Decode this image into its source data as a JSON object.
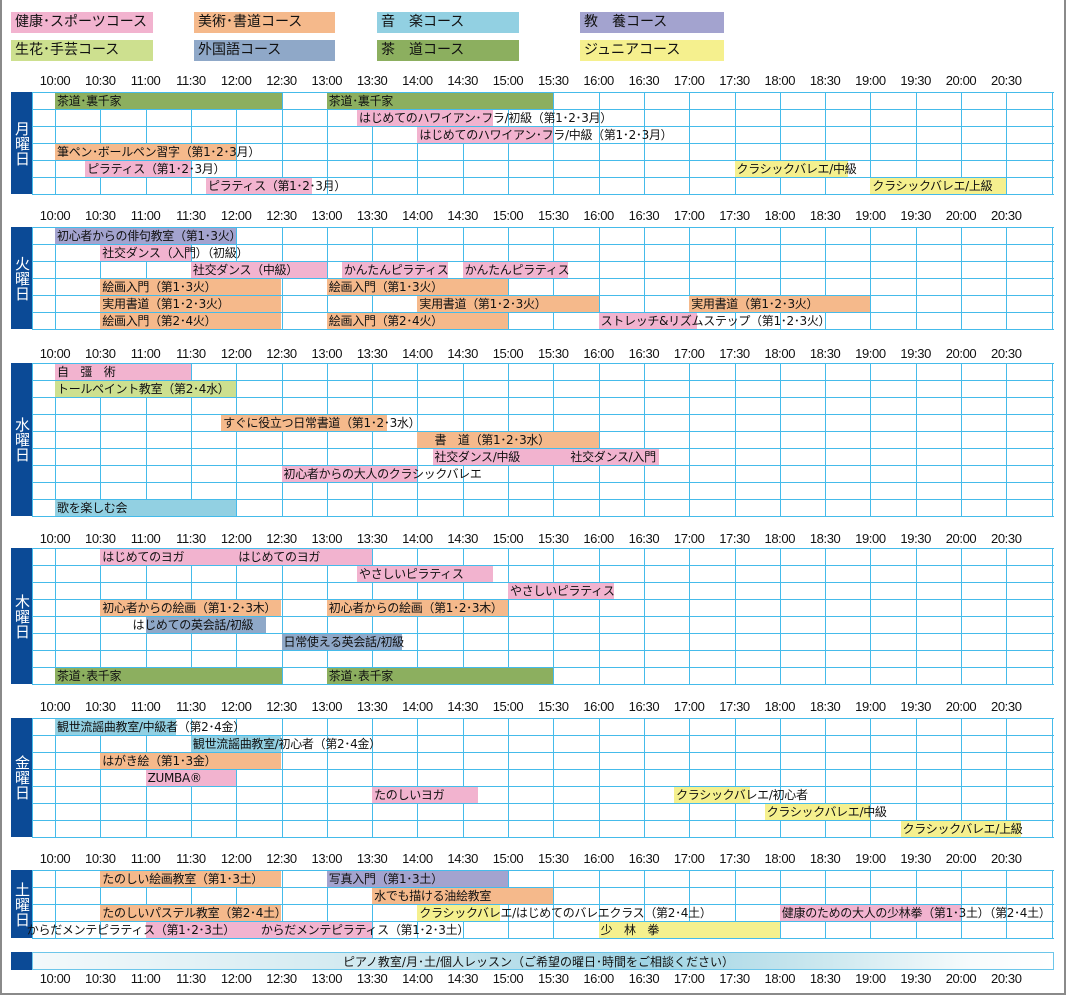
{
  "colors": {
    "health": "#f2b3cf",
    "art": "#f5b98b",
    "music": "#92d0e2",
    "edu": "#a3a3cf",
    "craft": "#cde08f",
    "foreign": "#8fa8c8",
    "tea": "#8caf5f",
    "junior": "#f5f08e",
    "day": "#0b4a96",
    "grid": "#45bbea"
  },
  "legend": [
    {
      "label": "健康･スポーツコース",
      "color": "health"
    },
    {
      "label": "美術･書道コース",
      "color": "art"
    },
    {
      "label": "音　楽コース",
      "color": "music"
    },
    {
      "label": "教　養コース",
      "color": "edu"
    },
    {
      "label": "生花･手芸コース",
      "color": "craft"
    },
    {
      "label": "外国語コース",
      "color": "foreign"
    },
    {
      "label": "茶　道コース",
      "color": "tea"
    },
    {
      "label": "ジュニアコース",
      "color": "junior"
    }
  ],
  "time_labels": [
    "10:00",
    "10:30",
    "11:00",
    "11:30",
    "12:00",
    "12:30",
    "13:00",
    "13:30",
    "14:00",
    "14:30",
    "15:00",
    "15:30",
    "16:00",
    "16:30",
    "17:00",
    "17:30",
    "18:00",
    "18:30",
    "19:00",
    "19:30",
    "20:00",
    "20:30"
  ],
  "days": [
    {
      "label": "月曜日",
      "rows": [
        [
          {
            "t": "茶道･裏千家",
            "s": "10:00",
            "e": "12:30",
            "c": "tea"
          },
          {
            "t": "茶道･裏千家",
            "s": "13:00",
            "e": "15:30",
            "c": "tea"
          }
        ],
        [
          {
            "t": "はじめてのハワイアン･フラ/初級（第1･2･3月）",
            "s": "13:20",
            "e": "14:50",
            "c": "health"
          }
        ],
        [
          {
            "t": "はじめてのハワイアン･フラ/中級（第1･2･3月）",
            "s": "14:00",
            "e": "15:30",
            "c": "health"
          }
        ],
        [
          {
            "t": "筆ペン･ボールペン習字（第1･2･3月）",
            "s": "10:00",
            "e": "12:00",
            "c": "art"
          }
        ],
        [
          {
            "t": "ピラティス（第1･2･3月）",
            "s": "10:20",
            "e": "11:30",
            "c": "health"
          },
          {
            "t": "クラシックバレエ/中級",
            "s": "17:30",
            "e": "18:45",
            "c": "junior"
          }
        ],
        [
          {
            "t": "ピラティス（第1･2･3月）",
            "s": "11:40",
            "e": "12:50",
            "c": "health"
          },
          {
            "t": "クラシックバレエ/上級",
            "s": "19:00",
            "e": "20:30",
            "c": "junior"
          }
        ]
      ]
    },
    {
      "label": "火曜日",
      "rows": [
        [
          {
            "t": "初心者からの俳句教室（第1･3火）",
            "s": "10:00",
            "e": "12:00",
            "c": "edu"
          }
        ],
        [
          {
            "t": "社交ダンス（入門）（初級）",
            "s": "10:30",
            "e": "11:30",
            "c": "health"
          }
        ],
        [
          {
            "t": "社交ダンス（中級）",
            "s": "11:30",
            "e": "13:00",
            "c": "health"
          },
          {
            "t": "かんたんピラティス",
            "s": "13:10",
            "e": "14:20",
            "c": "health"
          },
          {
            "t": "かんたんピラティス",
            "s": "14:30",
            "e": "15:40",
            "c": "health"
          }
        ],
        [
          {
            "t": "絵画入門（第1･3火）",
            "s": "10:30",
            "e": "12:30",
            "c": "art"
          },
          {
            "t": "絵画入門（第1･3火）",
            "s": "13:00",
            "e": "15:00",
            "c": "art"
          }
        ],
        [
          {
            "t": "実用書道（第1･2･3火）",
            "s": "10:30",
            "e": "12:30",
            "c": "art"
          },
          {
            "t": "実用書道（第1･2･3火）",
            "s": "14:00",
            "e": "16:00",
            "c": "art"
          },
          {
            "t": "実用書道（第1･2･3火）",
            "s": "17:00",
            "e": "19:00",
            "c": "art"
          }
        ],
        [
          {
            "t": "絵画入門（第2･4火）",
            "s": "10:30",
            "e": "12:30",
            "c": "art"
          },
          {
            "t": "絵画入門（第2･4火）",
            "s": "13:00",
            "e": "15:00",
            "c": "art"
          },
          {
            "t": "ストレッチ&リズムステップ（第1･2･3火）",
            "s": "16:00",
            "e": "17:05",
            "c": "health"
          }
        ]
      ]
    },
    {
      "label": "水曜日",
      "rows": [
        [
          {
            "t": "自　彊　術",
            "s": "10:00",
            "e": "11:30",
            "c": "health"
          }
        ],
        [
          {
            "t": "トールペイント教室（第2･4水）",
            "s": "10:00",
            "e": "12:00",
            "c": "craft"
          }
        ],
        [],
        [
          {
            "t": "すぐに役立つ日常書道（第1･2･3水）",
            "s": "11:50",
            "e": "13:40",
            "c": "art"
          }
        ],
        [
          {
            "t": "書　道（第1･2･3水）",
            "s": "14:00",
            "e": "16:00",
            "c": "art",
            "from": "14:10"
          }
        ],
        [
          {
            "t": "社交ダンス/中級",
            "s": "14:10",
            "e": "15:40",
            "c": "health"
          },
          {
            "t": "社交ダンス/入門",
            "s": "15:40",
            "e": "16:40",
            "c": "health"
          }
        ],
        [
          {
            "t": "初心者からの大人のクラシックバレエ",
            "s": "12:30",
            "e": "14:00",
            "c": "health"
          }
        ],
        [],
        [
          {
            "t": "歌を楽しむ会",
            "s": "10:00",
            "e": "12:00",
            "c": "music"
          }
        ]
      ]
    },
    {
      "label": "木曜日",
      "rows": [
        [
          {
            "t": "はじめてのヨガ",
            "s": "10:30",
            "e": "12:00",
            "c": "health"
          },
          {
            "t": "はじめてのヨガ",
            "s": "12:00",
            "e": "13:30",
            "c": "health"
          }
        ],
        [
          {
            "t": "やさしいピラティス",
            "s": "13:20",
            "e": "14:50",
            "c": "health"
          }
        ],
        [
          {
            "t": "やさしいピラティス",
            "s": "15:00",
            "e": "16:10",
            "c": "health"
          }
        ],
        [
          {
            "t": "初心者からの絵画（第1･2･3木）",
            "s": "10:30",
            "e": "12:30",
            "c": "art"
          },
          {
            "t": "初心者からの絵画（第1･2･3木）",
            "s": "13:00",
            "e": "15:00",
            "c": "art"
          }
        ],
        [
          {
            "t": "はじめての英会話/初級",
            "s": "11:00",
            "e": "12:20",
            "c": "foreign",
            "from": "10:50"
          }
        ],
        [
          {
            "t": "日常使える英会話/初級",
            "s": "12:30",
            "e": "13:50",
            "c": "foreign"
          }
        ],
        [],
        [
          {
            "t": "茶道･表千家",
            "s": "10:00",
            "e": "12:30",
            "c": "tea"
          },
          {
            "t": "茶道･表千家",
            "s": "13:00",
            "e": "15:30",
            "c": "tea"
          }
        ]
      ]
    },
    {
      "label": "金曜日",
      "rows": [
        [
          {
            "t": "観世流謡曲教室/中級者（第2･4金）",
            "s": "10:00",
            "e": "11:20",
            "c": "music"
          }
        ],
        [
          {
            "t": "観世流謡曲教室/初心者（第2･4金）",
            "s": "11:30",
            "e": "12:30",
            "c": "music"
          }
        ],
        [
          {
            "t": "はがき絵（第1･3金）",
            "s": "10:30",
            "e": "12:30",
            "c": "art"
          }
        ],
        [
          {
            "t": "ZUMBA®",
            "s": "11:00",
            "e": "12:00",
            "c": "health"
          }
        ],
        [
          {
            "t": "たのしいヨガ",
            "s": "13:30",
            "e": "14:40",
            "c": "health"
          },
          {
            "t": "クラシックバレエ/初心者",
            "s": "16:50",
            "e": "17:40",
            "c": "junior"
          }
        ],
        [
          {
            "t": "クラシックバレエ/中級",
            "s": "17:50",
            "e": "19:00",
            "c": "junior"
          }
        ],
        [
          {
            "t": "クラシックバレエ/上級",
            "s": "19:20",
            "e": "20:40",
            "c": "junior"
          }
        ]
      ]
    },
    {
      "label": "土曜日",
      "rows": [
        [
          {
            "t": "たのしい絵画教室（第1･3土）",
            "s": "10:30",
            "e": "12:30",
            "c": "art"
          },
          {
            "t": "写真入門（第1･3土）",
            "s": "13:00",
            "e": "15:00",
            "c": "edu"
          }
        ],
        [
          {
            "t": "水でも描ける油絵教室",
            "s": "13:30",
            "e": "15:30",
            "c": "art"
          }
        ],
        [
          {
            "t": "たのしいパステル教室（第2･4土）",
            "s": "10:30",
            "e": "12:30",
            "c": "art"
          },
          {
            "t": "クラシックバレエ/はじめてのバレエクラス（第2･4土）",
            "s": "14:00",
            "e": "14:55",
            "c": "junior"
          },
          {
            "t": "健康のための大人の少林拳（第1･3土）（第2･4土）",
            "s": "18:00",
            "e": "20:00",
            "c": "health"
          }
        ],
        [
          {
            "t": "からだメンテピラティス（第1･2･3土）",
            "s": "11:00",
            "e": "12:20",
            "c": "health",
            "from": "09:40"
          },
          {
            "t": "からだメンテピラティス（第1･2･3土）",
            "s": "12:15",
            "e": "13:30",
            "c": "health"
          },
          {
            "t": "少　林　拳",
            "s": "16:00",
            "e": "18:00",
            "c": "junior"
          }
        ]
      ]
    }
  ],
  "piano": {
    "label": "ピアノ教室/月･土/個人レッスン（ご希望の曜日･時間をご相談ください）"
  }
}
